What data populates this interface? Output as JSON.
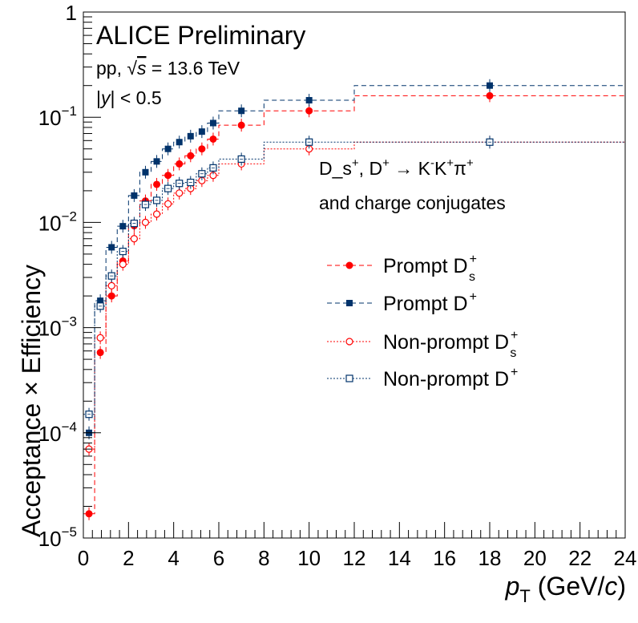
{
  "chart_data": {
    "type": "step-line-scatter",
    "xlabel": "p",
    "xlabel_sub": "T",
    "xlabel_unit": " (GeV/",
    "xlabel_unit_italic": "c",
    "xlabel_close": ")",
    "ylabel": "Acceptance × Efficiency",
    "xlim": [
      0,
      24
    ],
    "ylim": [
      1e-05,
      1
    ],
    "y_scale": "log",
    "x_ticks": [
      "0",
      "2",
      "4",
      "6",
      "8",
      "10",
      "12",
      "14",
      "16",
      "18",
      "20",
      "22",
      "24"
    ],
    "y_ticks": [
      {
        "base": "10",
        "exp": "−5"
      },
      {
        "base": "10",
        "exp": "−4"
      },
      {
        "base": "10",
        "exp": "−3"
      },
      {
        "base": "10",
        "exp": "−2"
      },
      {
        "base": "10",
        "exp": "−1"
      },
      {
        "base": "1",
        "exp": ""
      }
    ],
    "annotations": {
      "title": "ALICE Preliminary",
      "system_prefix": "pp,  ",
      "system_sqrt": "√",
      "system_s": "s",
      "system_suffix": " = 13.6 TeV",
      "rapidity_open": "|",
      "rapidity_y": "y",
      "rapidity_close": "| < 0.5",
      "decay_line1_a": "D_s",
      "decay_line1_sup1": "+",
      "decay_line1_b": ", D",
      "decay_line1_sup2": "+",
      "decay_line1_arrow": " → K",
      "decay_line1_sup3": "-",
      "decay_line1_c": "K",
      "decay_line1_sup4": "+",
      "decay_line1_d": "π",
      "decay_line1_sup5": "+",
      "decay_line2": "and charge conjugates"
    },
    "legend_position": "center-right",
    "bin_edges": [
      0,
      0.5,
      1,
      1.5,
      2,
      2.5,
      3,
      3.5,
      4,
      4.5,
      5,
      5.5,
      6,
      8,
      12,
      24
    ],
    "x": [
      0.25,
      0.75,
      1.25,
      1.75,
      2.25,
      2.75,
      3.25,
      3.75,
      4.25,
      4.75,
      5.25,
      5.75,
      7,
      10,
      18
    ],
    "series": [
      {
        "name": "Prompt D",
        "name_sup": "+",
        "name_sub": "s",
        "color": "#ff0000",
        "line": "dashed",
        "marker": "filled-circle",
        "values": [
          1.7e-05,
          0.00058,
          0.002,
          0.0043,
          0.0093,
          0.016,
          0.023,
          0.028,
          0.036,
          0.043,
          0.05,
          0.062,
          0.084,
          0.115,
          0.16
        ]
      },
      {
        "name": "Prompt D",
        "name_sup": "+",
        "name_sub": "",
        "color": "#00336b",
        "line": "dashed",
        "marker": "filled-square",
        "values": [
          0.0001,
          0.0018,
          0.0058,
          0.0092,
          0.018,
          0.03,
          0.038,
          0.05,
          0.058,
          0.066,
          0.073,
          0.088,
          0.115,
          0.145,
          0.2
        ]
      },
      {
        "name": "Non-prompt D",
        "name_sup": "+",
        "name_sub": "s",
        "color": "#ff0000",
        "line": "dotted",
        "marker": "open-circle",
        "values": [
          7e-05,
          0.0008,
          0.0025,
          0.004,
          0.007,
          0.01,
          0.012,
          0.015,
          0.019,
          0.021,
          0.025,
          0.028,
          0.036,
          0.05,
          0.058
        ]
      },
      {
        "name": "Non-prompt D",
        "name_sup": "+",
        "name_sub": "",
        "color": "#00336b",
        "line": "dotted",
        "marker": "open-square",
        "values": [
          0.00015,
          0.0016,
          0.0031,
          0.0053,
          0.0098,
          0.0148,
          0.0162,
          0.021,
          0.0235,
          0.024,
          0.029,
          0.033,
          0.04,
          0.058,
          0.058
        ]
      }
    ]
  }
}
